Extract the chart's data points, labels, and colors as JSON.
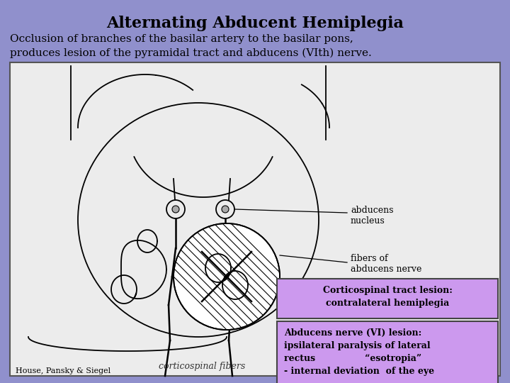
{
  "title": "Alternating Abducent Hemiplegia",
  "subtitle_line1": "Occlusion of branches of the basilar artery to the basilar pons,",
  "subtitle_line2": "produces lesion of the pyramidal tract and abducens (VIth) nerve.",
  "bg_color": "#9090cc",
  "image_bg": "#ececec",
  "box1_text_line1": "Corticospinal tract lesion:",
  "box1_text_line2": "contralateral hemiplegia",
  "box2_text_line1": "Abducens nerve (VI) lesion:",
  "box2_text_line2": "ipsilateral paralysis of lateral",
  "box2_text_line3": "rectus                “esotropia”",
  "box2_text_line4": "- internal deviation  of the eye",
  "label_abducens_nucleus": "abducens\nnucleus",
  "label_fibers": "fibers of\nabducens nerve",
  "label_corticospinal": "corticospinal fibers",
  "label_source": "House, Pansky & Siegel",
  "box_color": "#cc99ee"
}
